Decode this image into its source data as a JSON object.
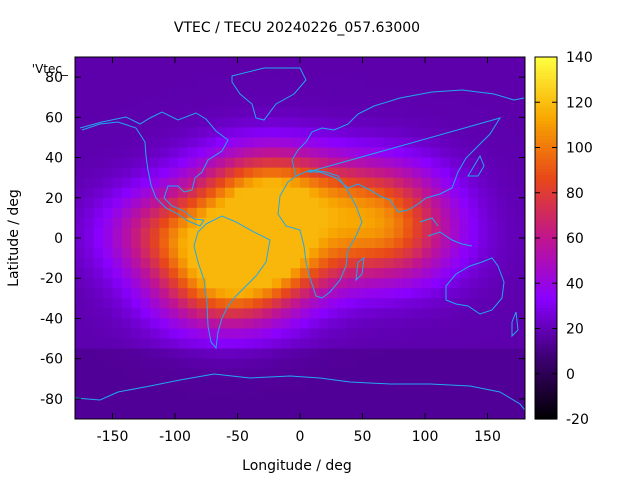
{
  "chart_data": {
    "type": "heatmap",
    "title": "VTEC / TECU 20240226_057.63000",
    "xlabel": "Longitude / deg",
    "ylabel": "Latitude / deg",
    "xlim": [
      -180,
      180
    ],
    "ylim": [
      -90,
      90
    ],
    "xticks": [
      -150,
      -100,
      -50,
      0,
      50,
      100,
      150
    ],
    "yticks": [
      -80,
      -60,
      -40,
      -20,
      0,
      20,
      40,
      60,
      80
    ],
    "colorbar": {
      "range": [
        -20,
        140
      ],
      "ticks": [
        -20,
        0,
        20,
        40,
        60,
        80,
        100,
        120,
        140
      ],
      "palette": [
        "#000000",
        "#3b006f",
        "#8a00ff",
        "#c0158f",
        "#e84818",
        "#f8a800",
        "#ffff40"
      ]
    },
    "legend": {
      "label": "'Vtec_",
      "placement": "top-left"
    },
    "background_level": 18,
    "peaks": [
      {
        "lon": -25,
        "lat": 22,
        "value": 108
      },
      {
        "lon": -25,
        "lat": -8,
        "value": 100
      },
      {
        "lon": -60,
        "lat": -25,
        "value": 82
      },
      {
        "lon": -95,
        "lat": 2,
        "value": 80
      },
      {
        "lon": 60,
        "lat": 18,
        "value": 72
      },
      {
        "lon": 70,
        "lat": -3,
        "value": 70
      }
    ]
  }
}
